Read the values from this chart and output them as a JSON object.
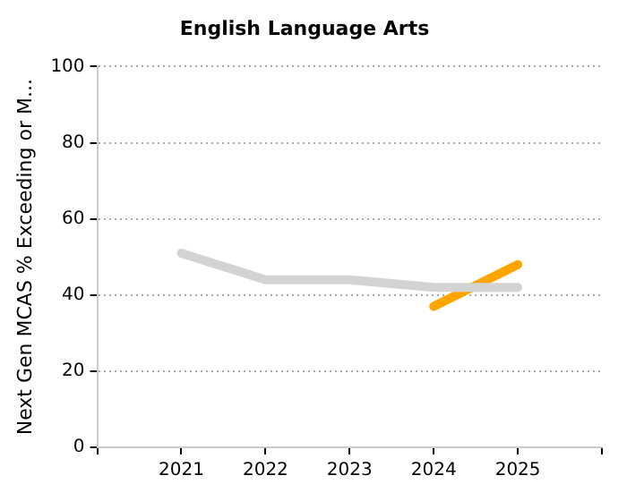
{
  "chart_data": {
    "type": "line",
    "title": "English Language Arts",
    "ylabel": "Next Gen MCAS % Exceeding or M...",
    "x": [
      2021,
      2022,
      2023,
      2024,
      2025
    ],
    "series": [
      {
        "color": "#d3d3d3",
        "values": [
          51,
          44,
          44,
          42,
          42
        ]
      },
      {
        "color": "#ffa500",
        "values": [
          null,
          null,
          null,
          37,
          48
        ]
      }
    ],
    "xlim": [
      2020,
      2026
    ],
    "xticks": [
      {
        "value": 2020,
        "label": null
      },
      2021,
      2022,
      2023,
      2024,
      2025,
      {
        "value": 2026,
        "label": null
      }
    ],
    "ylim": [
      0,
      100
    ],
    "yticks": [
      0,
      20,
      40,
      60,
      80,
      100
    ],
    "grid": "y",
    "legend": false,
    "marker": "none",
    "line_style": "solid"
  }
}
